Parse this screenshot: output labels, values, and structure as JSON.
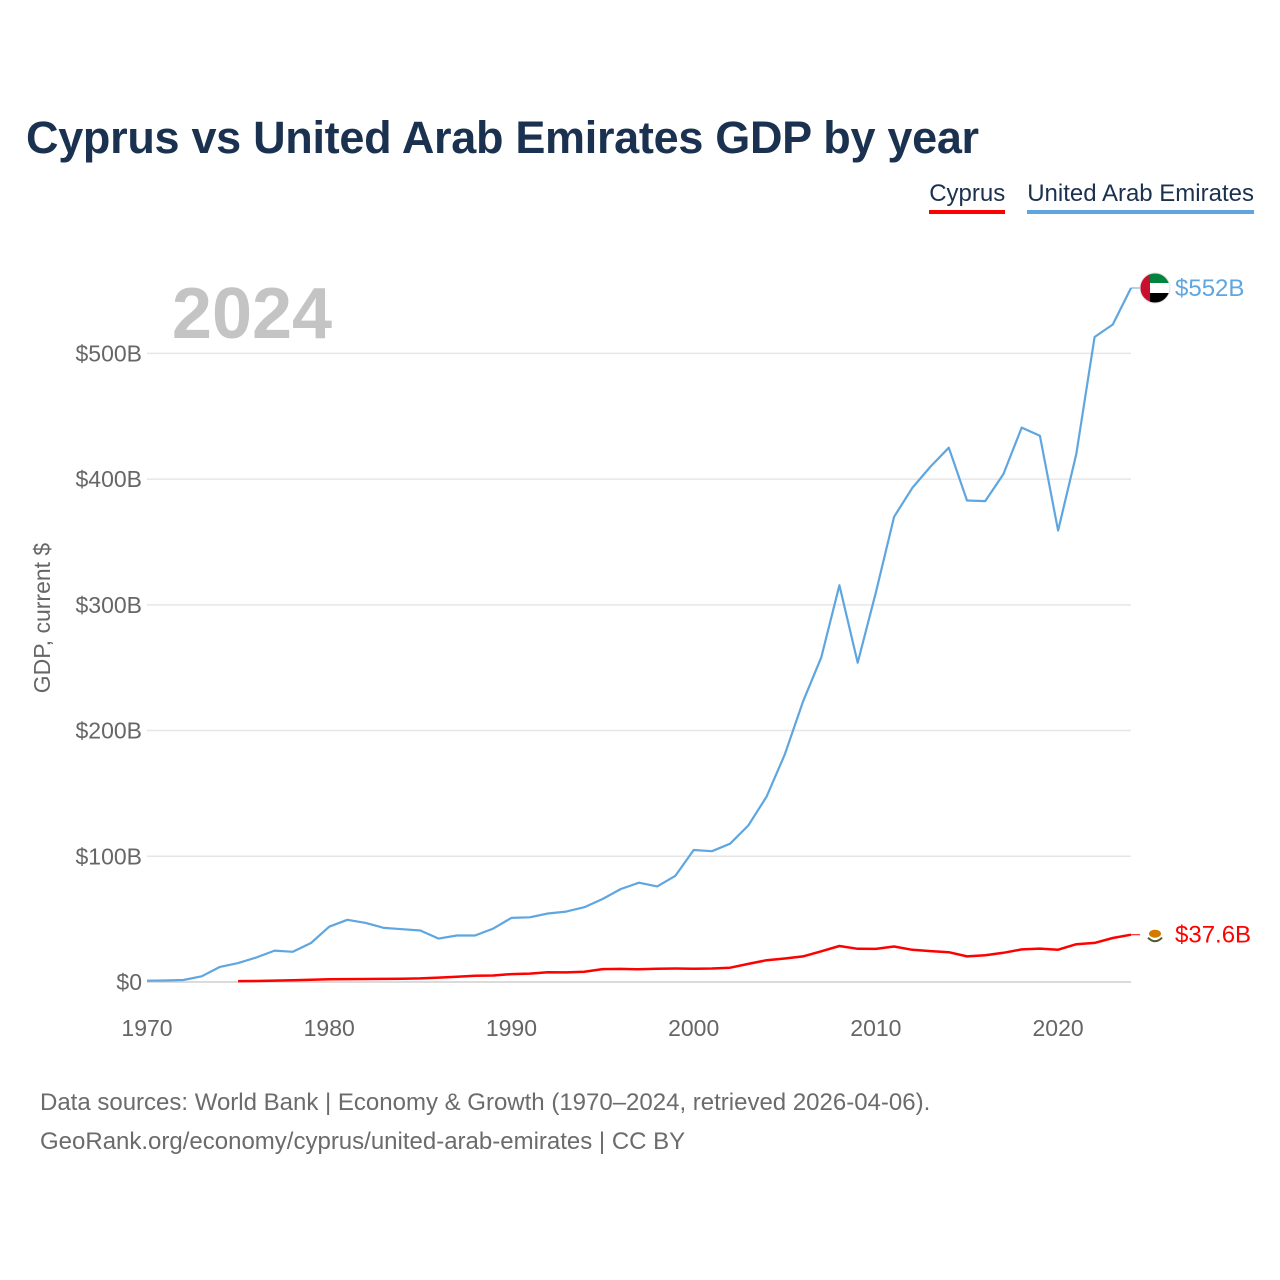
{
  "title": "Cyprus vs United Arab Emirates GDP by year",
  "legend": [
    {
      "name": "Cyprus",
      "color": "#ff0000"
    },
    {
      "name": "United Arab Emirates",
      "color": "#5fa6e0"
    }
  ],
  "footer": {
    "line1": "Data sources: World Bank | Economy & Growth (1970–2024, retrieved 2026-04-06).",
    "line2": "GeoRank.org/economy/cyprus/united-arab-emirates | CC BY"
  },
  "chart_data": {
    "type": "line",
    "title": "Cyprus vs United Arab Emirates GDP by year",
    "year_label": "2024",
    "ylabel": "GDP, current $",
    "xlabel": "",
    "xlim": [
      1970,
      2024
    ],
    "ylim": [
      0,
      552
    ],
    "x_ticks": [
      1970,
      1980,
      1990,
      2000,
      2010,
      2020
    ],
    "y_ticks": [
      {
        "value": 0,
        "label": "$0"
      },
      {
        "value": 100,
        "label": "$100B"
      },
      {
        "value": 200,
        "label": "$200B"
      },
      {
        "value": 300,
        "label": "$300B"
      },
      {
        "value": 400,
        "label": "$400B"
      },
      {
        "value": 500,
        "label": "$500B"
      }
    ],
    "grid": true,
    "series": [
      {
        "name": "United Arab Emirates",
        "color": "#5fa6e0",
        "end_label": "$552B",
        "start_year": 1970,
        "values": [
          1,
          1.2,
          1.6,
          4.5,
          12,
          15,
          19.5,
          25,
          24,
          31,
          44,
          49.5,
          47,
          43,
          42,
          41,
          34.5,
          37,
          37,
          42.5,
          51,
          51.5,
          54.5,
          56,
          59.5,
          66,
          74,
          79,
          76,
          84.5,
          105,
          104,
          110,
          124.5,
          147.5,
          181,
          223,
          258,
          315.5,
          254,
          310,
          370,
          393,
          410,
          425,
          383,
          382.5,
          404,
          441,
          434.5,
          359,
          420,
          513,
          523,
          552
        ]
      },
      {
        "name": "Cyprus",
        "color": "#ff0000",
        "end_label": "$37.6B",
        "start_year": 1975,
        "values": [
          0.7,
          0.8,
          1.1,
          1.4,
          1.8,
          2.2,
          2.3,
          2.4,
          2.5,
          2.6,
          2.9,
          3.5,
          4.2,
          4.9,
          5.2,
          6.3,
          6.7,
          7.7,
          7.6,
          8.2,
          10.3,
          10.4,
          10.1,
          10.6,
          10.7,
          10.6,
          10.7,
          11.4,
          14.4,
          17.3,
          18.7,
          20.4,
          24.4,
          28.6,
          26.4,
          26.3,
          28.2,
          25.6,
          24.6,
          23.7,
          20.4,
          21.3,
          23.2,
          25.9,
          26.6,
          25.7,
          30.1,
          31.1,
          35,
          37.6
        ]
      }
    ]
  }
}
